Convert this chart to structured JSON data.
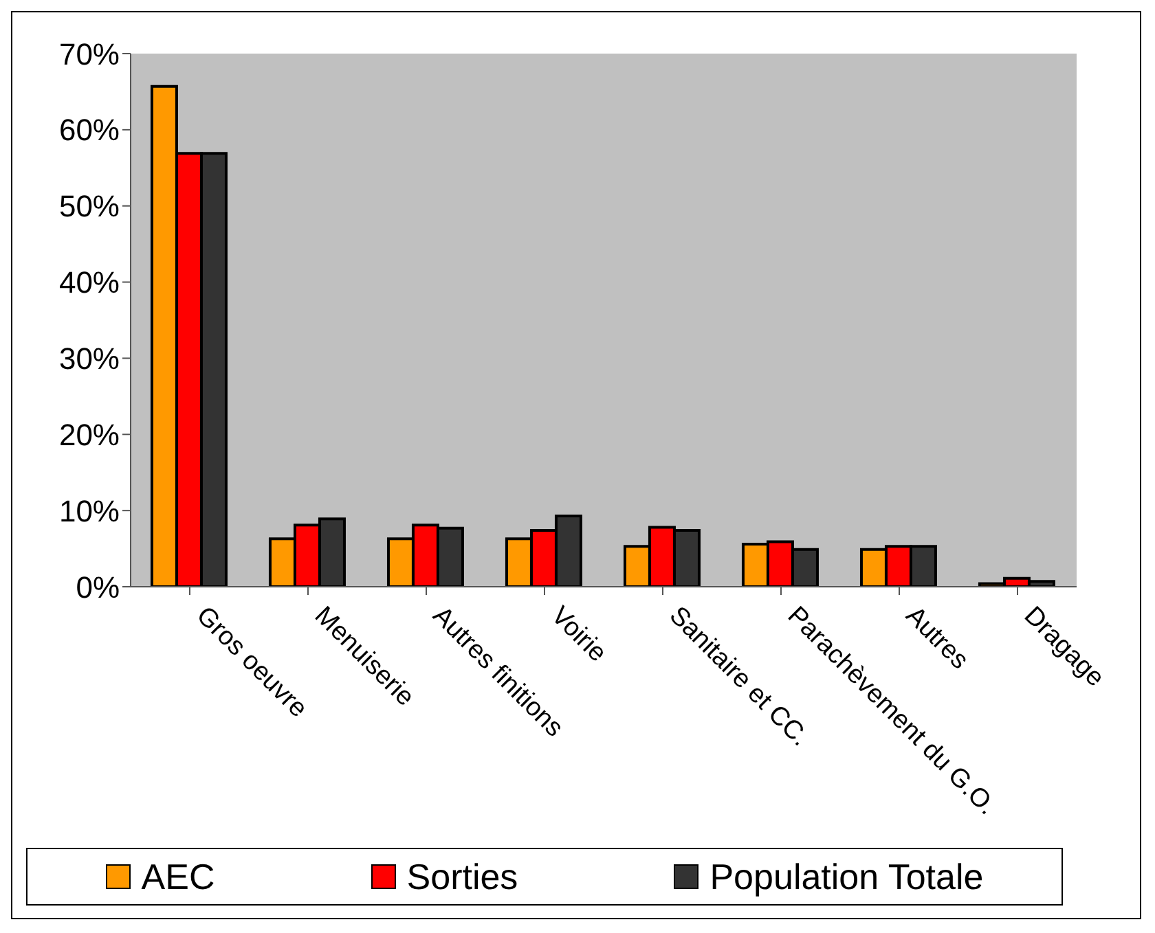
{
  "chart_data": {
    "type": "bar",
    "categories": [
      "Gros oeuvre",
      "Menuiserie",
      "Autres finitions",
      "Voirie",
      "Sanitaire et CC.",
      "Parachèvement du G.O.",
      "Autres",
      "Dragage"
    ],
    "series": [
      {
        "name": "AEC",
        "color": "#ff9900",
        "values": [
          65.7,
          6.3,
          6.3,
          6.3,
          5.3,
          5.6,
          4.9,
          0.4
        ]
      },
      {
        "name": "Sorties",
        "color": "#ff0000",
        "values": [
          56.9,
          8.1,
          8.1,
          7.4,
          7.8,
          5.9,
          5.3,
          1.1
        ]
      },
      {
        "name": "Population Totale",
        "color": "#333333",
        "values": [
          56.9,
          8.9,
          7.7,
          9.3,
          7.4,
          4.9,
          5.3,
          0.7
        ]
      }
    ],
    "ylim": [
      0,
      70
    ],
    "yticks": [
      {
        "value": 0,
        "label": "0%"
      },
      {
        "value": 10,
        "label": "10%"
      },
      {
        "value": 20,
        "label": "20%"
      },
      {
        "value": 30,
        "label": "30%"
      },
      {
        "value": 40,
        "label": "40%"
      },
      {
        "value": 50,
        "label": "50%"
      },
      {
        "value": 60,
        "label": "60%"
      },
      {
        "value": 70,
        "label": "70%"
      }
    ],
    "grid": false,
    "legend": "bottom"
  }
}
